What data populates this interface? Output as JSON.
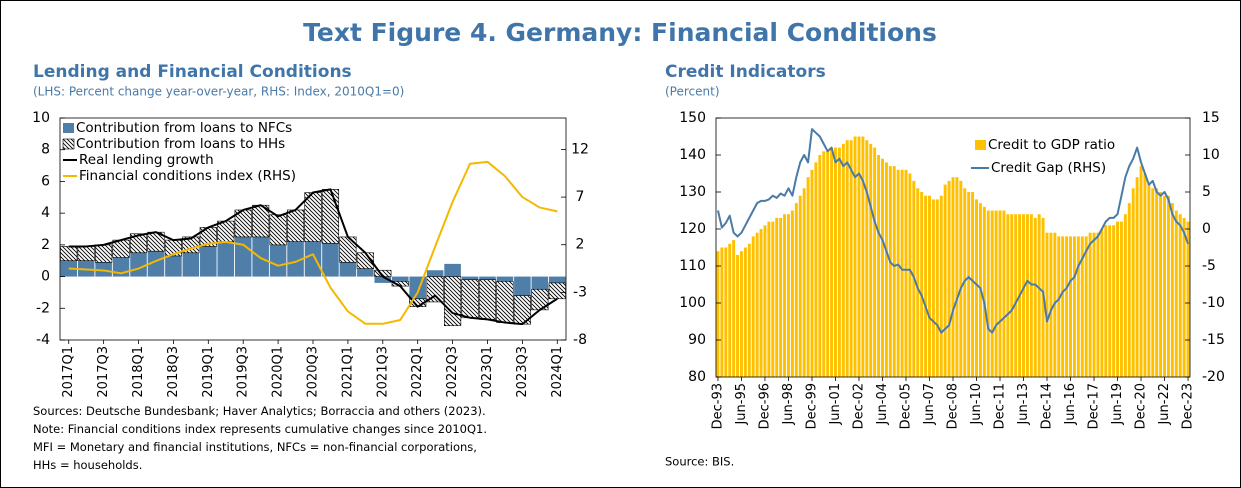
{
  "title": "Text Figure 4. Germany: Financial Conditions",
  "chart_data": [
    {
      "type": "combo",
      "stacked": true,
      "legend": "upper left",
      "title": "Lending and Financial Conditions",
      "subtitle": "(LHS: Percent change year-over-year, RHS: Index, 2010Q1=0)",
      "categories": [
        "2017Q1",
        null,
        "2017Q3",
        null,
        "2018Q1",
        null,
        "2018Q3",
        null,
        "2019Q1",
        null,
        "2019Q3",
        null,
        "2020Q1",
        null,
        "2020Q3",
        null,
        "2021Q1",
        null,
        "2021Q3",
        null,
        "2022Q1",
        null,
        "2022Q3",
        null,
        "2023Q1",
        null,
        "2023Q3",
        null,
        "2024Q1"
      ],
      "ylim": [
        -4,
        10
      ],
      "yticks": [
        -4,
        -2,
        0,
        2,
        4,
        6,
        8,
        10
      ],
      "y2lim": [
        -8,
        15.3
      ],
      "y2ticks": [
        -8,
        -3,
        2,
        7,
        12
      ],
      "series": [
        {
          "name": "Contribution from loans to NFCs",
          "type": "bar",
          "color": "#4f7fa8",
          "values": [
            1.0,
            1.0,
            0.9,
            1.2,
            1.5,
            1.6,
            1.3,
            1.5,
            1.9,
            2.2,
            2.5,
            2.5,
            2.0,
            2.2,
            2.2,
            2.1,
            0.9,
            0.5,
            -0.4,
            -0.3,
            -1.4,
            0.4,
            0.8,
            -0.2,
            -0.2,
            -0.3,
            -1.2,
            -0.8,
            -0.4
          ]
        },
        {
          "name": "Contribution from loans to HHs",
          "type": "bar",
          "pattern": "hatch",
          "color": "#000000",
          "values": [
            0.9,
            0.9,
            1.1,
            1.1,
            1.2,
            1.2,
            1.0,
            1.0,
            1.2,
            1.3,
            1.7,
            2.0,
            1.9,
            2.0,
            3.1,
            3.4,
            1.6,
            1.0,
            0.4,
            -0.3,
            -0.5,
            -1.6,
            -3.1,
            -2.4,
            -2.5,
            -2.6,
            -1.8,
            -1.3,
            -1.0
          ]
        },
        {
          "name": "Real lending growth",
          "type": "line",
          "color": "#000000",
          "values": [
            1.9,
            1.9,
            2.0,
            2.3,
            2.6,
            2.8,
            2.3,
            2.4,
            3.1,
            3.5,
            4.2,
            4.5,
            3.8,
            4.2,
            5.3,
            5.5,
            2.5,
            1.5,
            0.0,
            -0.6,
            -1.9,
            -1.2,
            -2.3,
            -2.6,
            -2.7,
            -2.9,
            -3.0,
            -2.1,
            -1.4
          ]
        },
        {
          "name": "Financial conditions index (RHS)",
          "type": "line",
          "axis": "y2",
          "color": "#f5b800",
          "values": [
            -0.5,
            -0.6,
            -0.7,
            -1.0,
            -0.5,
            0.3,
            1.0,
            1.6,
            2.1,
            2.3,
            2.0,
            0.6,
            -0.2,
            0.2,
            1.0,
            -2.5,
            -5.0,
            -6.3,
            -6.3,
            -5.9,
            -3.0,
            1.8,
            6.5,
            10.5,
            10.7,
            9.2,
            7.0,
            5.9,
            5.5
          ]
        }
      ],
      "notes": [
        "Sources: Deutsche Bundesbank; Haver Analytics; Borraccia and others (2023).",
        "Note: Financial conditions index represents cumulative changes since 2010Q1. MFI = Monetary and financial institutions, NFCs = non-financial corporations, HHs = households."
      ]
    },
    {
      "type": "combo",
      "legend": "upper right",
      "title": "Credit Indicators",
      "subtitle": "(Percent)",
      "categories": [
        "Dec-93",
        null,
        null,
        null,
        null,
        null,
        "Jun-95",
        null,
        null,
        null,
        null,
        null,
        "Dec-96",
        null,
        null,
        null,
        null,
        null,
        "Jun-98",
        null,
        null,
        null,
        null,
        null,
        "Dec-99",
        null,
        null,
        null,
        null,
        null,
        "Jun-01",
        null,
        null,
        null,
        null,
        null,
        "Dec-02",
        null,
        null,
        null,
        null,
        null,
        "Jun-04",
        null,
        null,
        null,
        null,
        null,
        "Dec-05",
        null,
        null,
        null,
        null,
        null,
        "Jun-07",
        null,
        null,
        null,
        null,
        null,
        "Dec-08",
        null,
        null,
        null,
        null,
        null,
        "Jun-10",
        null,
        null,
        null,
        null,
        null,
        "Dec-11",
        null,
        null,
        null,
        null,
        null,
        "Jun-13",
        null,
        null,
        null,
        null,
        null,
        "Dec-14",
        null,
        null,
        null,
        null,
        null,
        "Jun-16",
        null,
        null,
        null,
        null,
        null,
        "Dec-17",
        null,
        null,
        null,
        null,
        null,
        "Jun-19",
        null,
        null,
        null,
        null,
        null,
        "Dec-20",
        null,
        null,
        null,
        null,
        null,
        "Jun-22",
        null,
        null,
        null,
        null,
        null,
        "Dec-23"
      ],
      "ylim": [
        80,
        150
      ],
      "yticks": [
        80,
        90,
        100,
        110,
        120,
        130,
        140,
        150
      ],
      "y2lim": [
        -20,
        15
      ],
      "y2ticks": [
        -20,
        -15,
        -10,
        -5,
        0,
        5,
        10,
        15
      ],
      "series": [
        {
          "name": "Credit to GDP ratio",
          "type": "bar",
          "color": "#ffc000",
          "values": [
            114,
            115,
            115,
            116,
            117,
            113,
            114,
            115,
            116,
            118,
            119,
            120,
            121,
            122,
            122,
            123,
            123,
            124,
            124,
            125,
            127,
            129,
            131,
            134,
            136,
            138,
            140,
            141,
            141,
            142,
            142,
            142,
            143,
            144,
            144,
            145,
            145,
            145,
            144,
            143,
            142,
            140,
            139,
            138,
            137,
            137,
            136,
            136,
            136,
            135,
            133,
            131,
            130,
            129,
            129,
            128,
            128,
            129,
            132,
            133,
            134,
            134,
            133,
            131,
            130,
            130,
            128,
            127,
            126,
            125,
            125,
            125,
            125,
            125,
            124,
            124,
            124,
            124,
            124,
            124,
            124,
            123,
            124,
            123,
            119,
            119,
            119,
            118,
            118,
            118,
            118,
            118,
            118,
            118,
            118,
            119,
            119,
            119,
            120,
            121,
            121,
            121,
            122,
            122,
            124,
            127,
            131,
            134,
            137,
            135,
            132,
            131,
            131,
            130,
            129,
            129,
            127,
            125,
            124,
            123,
            122
          ]
        },
        {
          "name": "Credit Gap (RHS)",
          "type": "line",
          "axis": "y2",
          "color": "#4a7aa6",
          "values": [
            2.5,
            0.2,
            0.8,
            1.8,
            -0.5,
            -1.0,
            -0.5,
            0.5,
            1.5,
            2.5,
            3.5,
            3.8,
            3.8,
            4.0,
            4.5,
            4.2,
            4.8,
            4.5,
            5.5,
            4.5,
            7.0,
            9.0,
            10.0,
            9.0,
            13.5,
            13.0,
            12.5,
            11.5,
            10.5,
            11.0,
            9.0,
            9.5,
            8.5,
            9.0,
            8.0,
            7.0,
            7.5,
            6.5,
            5.0,
            3.0,
            1.0,
            -0.5,
            -1.5,
            -3.0,
            -4.5,
            -5.0,
            -4.8,
            -5.5,
            -5.5,
            -5.5,
            -6.5,
            -8.0,
            -9.0,
            -10.5,
            -12.0,
            -12.5,
            -13.0,
            -14.0,
            -13.5,
            -13.0,
            -11.0,
            -9.5,
            -8.0,
            -7.0,
            -6.5,
            -7.0,
            -7.5,
            -8.0,
            -10.0,
            -13.5,
            -14.0,
            -13.0,
            -12.5,
            -12.0,
            -11.5,
            -11.0,
            -10.0,
            -9.0,
            -8.0,
            -7.0,
            -7.5,
            -7.5,
            -8.0,
            -8.5,
            -12.5,
            -11.0,
            -10.0,
            -9.5,
            -8.5,
            -8.0,
            -7.0,
            -6.5,
            -5.0,
            -4.0,
            -3.0,
            -2.0,
            -1.5,
            -1.0,
            0.0,
            1.0,
            1.5,
            1.5,
            2.0,
            4.5,
            7.0,
            8.5,
            9.5,
            11.0,
            9.0,
            7.5,
            6.0,
            6.5,
            5.0,
            4.5,
            5.0,
            4.0,
            2.0,
            1.0,
            0.5,
            -0.5,
            -2.0
          ]
        }
      ],
      "source": "Source: BIS."
    }
  ]
}
